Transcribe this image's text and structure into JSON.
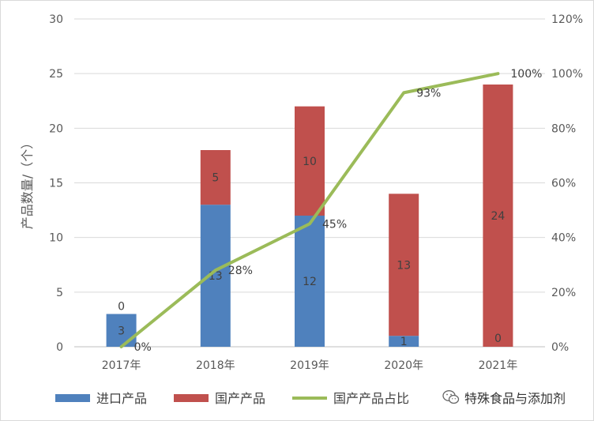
{
  "chart_data": {
    "type": "bar",
    "categories": [
      "2017年",
      "2018年",
      "2019年",
      "2020年",
      "2021年"
    ],
    "series": [
      {
        "name": "进口产品",
        "kind": "bar",
        "stack": "a",
        "axis": "left",
        "color": "#4f81bd",
        "values": [
          3,
          13,
          12,
          1,
          0
        ],
        "labels": [
          "3",
          "13",
          "12",
          "1",
          "0"
        ]
      },
      {
        "name": "国产产品",
        "kind": "bar",
        "stack": "a",
        "axis": "left",
        "color": "#c0504d",
        "values": [
          0,
          5,
          10,
          13,
          24
        ],
        "labels": [
          "0",
          "5",
          "10",
          "13",
          "24"
        ]
      },
      {
        "name": "国产产品占比",
        "kind": "line",
        "axis": "right",
        "color": "#9bbb59",
        "values": [
          0,
          28,
          45,
          93,
          100
        ],
        "labels": [
          "0%",
          "28%",
          "45%",
          "93%",
          "100%"
        ]
      }
    ],
    "ylabel": "产品数量/（个）",
    "ylim": [
      0,
      30
    ],
    "yticks": [
      "0",
      "5",
      "10",
      "15",
      "20",
      "25",
      "30"
    ],
    "y2lim": [
      0,
      120
    ],
    "y2ticks": [
      "0%",
      "20%",
      "40%",
      "60%",
      "80%",
      "100%",
      "120%"
    ],
    "grid": true,
    "legend_position": "bottom"
  },
  "watermark": {
    "text": "特殊食品与添加剂",
    "icon": "wechat-icon"
  }
}
